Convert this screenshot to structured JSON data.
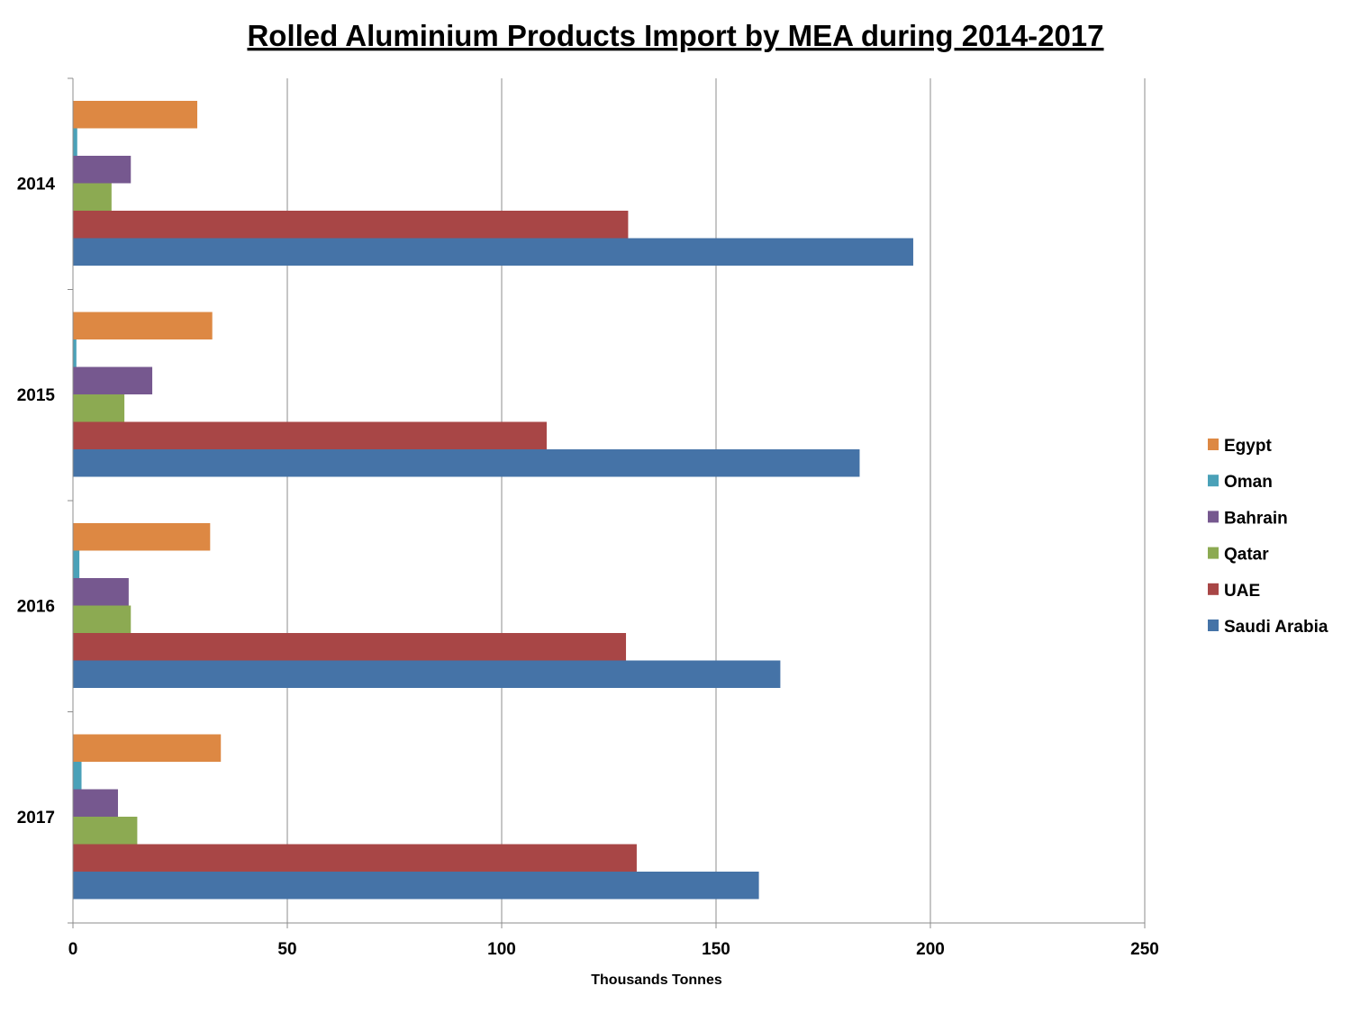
{
  "chart_data": {
    "type": "bar",
    "orientation": "horizontal",
    "title": "Rolled Aluminium Products Import by MEA during 2014-2017",
    "xlabel": "Thousands Tonnes",
    "ylabel": "",
    "xlim": [
      0,
      250
    ],
    "xticks": [
      0,
      50,
      100,
      150,
      200,
      250
    ],
    "grid": true,
    "legend_position": "right",
    "categories": [
      "2014",
      "2015",
      "2016",
      "2017"
    ],
    "series": [
      {
        "name": "Egypt",
        "color": "#DD8843",
        "values": [
          29,
          32.5,
          32,
          34.5
        ]
      },
      {
        "name": "Oman",
        "color": "#4AA1B8",
        "values": [
          1,
          0.8,
          1.5,
          2
        ]
      },
      {
        "name": "Bahrain",
        "color": "#76588F",
        "values": [
          13.5,
          18.5,
          13,
          10.5
        ]
      },
      {
        "name": "Qatar",
        "color": "#8CAA52",
        "values": [
          9,
          12,
          13.5,
          15
        ]
      },
      {
        "name": "UAE",
        "color": "#A84646",
        "values": [
          129.5,
          110.5,
          129,
          131.5
        ]
      },
      {
        "name": "Saudi Arabia",
        "color": "#4573A7",
        "values": [
          196,
          183.5,
          165,
          160
        ]
      }
    ]
  }
}
